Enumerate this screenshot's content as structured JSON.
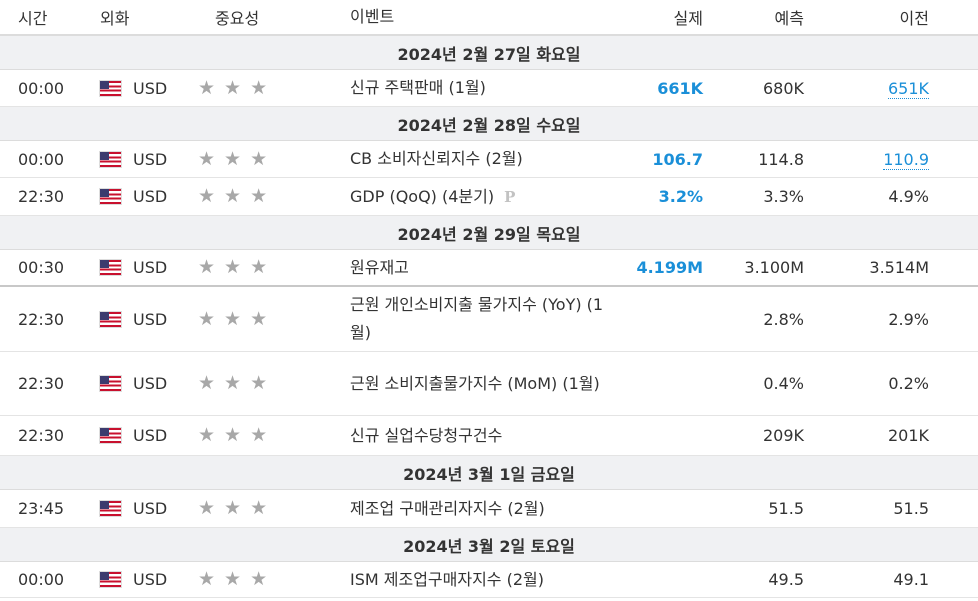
{
  "header": {
    "time": "시간",
    "currency": "외화",
    "importance": "중요성",
    "event": "이벤트",
    "actual": "실제",
    "forecast": "예측",
    "previous": "이전"
  },
  "groups": [
    {
      "date": "2024년 2월 27일 화요일",
      "events": [
        {
          "time": "00:00",
          "currency": "USD",
          "event": "신규 주택판매 (1월)",
          "actual": "661K",
          "forecast": "680K",
          "previous": "651K",
          "previous_revised": true
        }
      ]
    },
    {
      "date": "2024년 2월 28일 수요일",
      "events": [
        {
          "time": "00:00",
          "currency": "USD",
          "event": "CB 소비자신뢰지수 (2월)",
          "actual": "106.7",
          "forecast": "114.8",
          "previous": "110.9",
          "previous_revised": true
        },
        {
          "time": "22:30",
          "currency": "USD",
          "event": "GDP (QoQ) (4분기)",
          "preliminary_mark": "P",
          "actual": "3.2%",
          "forecast": "3.3%",
          "previous": "4.9%"
        }
      ]
    },
    {
      "date": "2024년 2월 29일 목요일",
      "events": [
        {
          "time": "00:30",
          "currency": "USD",
          "event": "원유재고",
          "actual": "4.199M",
          "forecast": "3.100M",
          "previous": "3.514M"
        },
        {
          "time": "22:30",
          "currency": "USD",
          "event": "근원 개인소비지출 물가지수 (YoY) (1월)",
          "actual": "",
          "forecast": "2.8%",
          "previous": "2.9%"
        },
        {
          "time": "22:30",
          "currency": "USD",
          "event": "근원 소비지출물가지수 (MoM) (1월)",
          "actual": "",
          "forecast": "0.4%",
          "previous": "0.2%"
        },
        {
          "time": "22:30",
          "currency": "USD",
          "event": "신규 실업수당청구건수",
          "actual": "",
          "forecast": "209K",
          "previous": "201K"
        }
      ]
    },
    {
      "date": "2024년 3월 1일 금요일",
      "events": [
        {
          "time": "23:45",
          "currency": "USD",
          "event": "제조업 구매관리자지수 (2월)",
          "actual": "",
          "forecast": "51.5",
          "previous": "51.5"
        }
      ]
    },
    {
      "date": "2024년 3월 2일 토요일",
      "events": [
        {
          "time": "00:00",
          "currency": "USD",
          "event": "ISM 제조업구매자지수 (2월)",
          "actual": "",
          "forecast": "49.5",
          "previous": "49.1"
        }
      ]
    }
  ],
  "colors": {
    "actual": "#1a8fd8",
    "star": "#a8a8a8",
    "date_row_bg": "#f0f1f3"
  },
  "icons": {
    "flag": "us-flag-icon",
    "importance": "star-icon"
  }
}
